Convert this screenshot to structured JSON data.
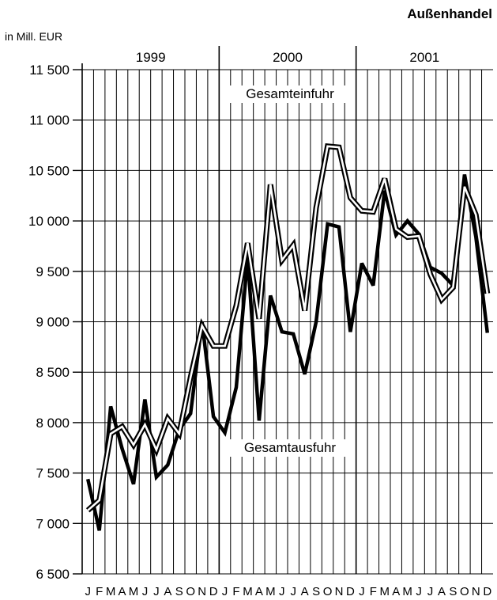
{
  "header": {
    "title": "Außenhandel",
    "unit_label": "in Mill. EUR"
  },
  "chart_data": {
    "type": "line",
    "title": "Außenhandel",
    "ylabel": "in Mill. EUR",
    "ylim": [
      6500,
      11500
    ],
    "yticks": [
      6500,
      7000,
      7500,
      8000,
      8500,
      9000,
      9500,
      10000,
      10500,
      11000,
      11500
    ],
    "ytick_labels": [
      "6 500",
      "7 000",
      "7 500",
      "8 000",
      "8 500",
      "9 000",
      "9 500",
      "10 000",
      "10 500",
      "11 000",
      "11 500"
    ],
    "years": [
      "1999",
      "2000",
      "2001"
    ],
    "categories": [
      "J",
      "F",
      "M",
      "A",
      "M",
      "J",
      "J",
      "A",
      "S",
      "O",
      "N",
      "D",
      "J",
      "F",
      "M",
      "A",
      "M",
      "J",
      "J",
      "A",
      "S",
      "O",
      "N",
      "D",
      "J",
      "F",
      "M",
      "A",
      "M",
      "J",
      "J",
      "A",
      "S",
      "O",
      "N",
      "D"
    ],
    "grid": true,
    "series": [
      {
        "name": "Gesamteinfuhr",
        "style": "outlined",
        "color": "#000000",
        "values": [
          7130,
          7230,
          7890,
          7960,
          7780,
          7980,
          7730,
          8040,
          7890,
          8450,
          8960,
          8760,
          8760,
          9160,
          9780,
          9030,
          10360,
          9610,
          9760,
          9110,
          10130,
          10740,
          10730,
          10230,
          10100,
          10090,
          10420,
          9920,
          9840,
          9850,
          9470,
          9220,
          9340,
          10340,
          10060,
          9280
        ]
      },
      {
        "name": "Gesamtausfuhr",
        "style": "bold",
        "color": "#000000",
        "values": [
          7440,
          6930,
          8160,
          7740,
          7390,
          8230,
          7460,
          7580,
          7930,
          8090,
          9000,
          8060,
          7900,
          8350,
          9640,
          8020,
          9260,
          8900,
          8880,
          8480,
          9000,
          9970,
          9940,
          8900,
          9580,
          9360,
          10300,
          9860,
          10000,
          9870,
          9540,
          9480,
          9360,
          10460,
          9840,
          8890
        ]
      }
    ],
    "annotations": [
      "Gesamteinfuhr",
      "Gesamtausfuhr"
    ]
  }
}
